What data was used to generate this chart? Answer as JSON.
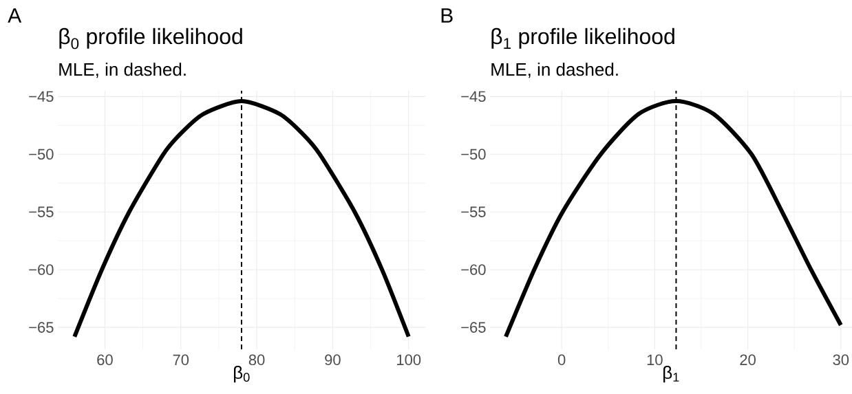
{
  "chart_data": [
    {
      "type": "line",
      "title": "β$_{0}$ profile likelihood",
      "subtitle": "MLE, in dashed.",
      "xlabel": "β$_{0}$",
      "annotations": [
        "A"
      ],
      "series": [
        {
          "color": "#000000",
          "x": [
            56,
            59.6,
            63.2,
            67.7,
            70,
            73,
            78,
            83,
            86,
            88.3,
            92.9,
            96.5,
            100
          ],
          "values": [
            -65.8,
            -60,
            -55,
            -50,
            -48.2,
            -46.5,
            -45.4,
            -46.5,
            -48.2,
            -50,
            -55,
            -60,
            -65.8
          ]
        }
      ],
      "ref_lines": [
        {
          "axis": "x",
          "value": 78,
          "color": "#000000",
          "line_style": "dashed"
        }
      ],
      "xlim": [
        53.8,
        102.2
      ],
      "ylim": [
        -66.9,
        -44.5
      ],
      "xticks": [
        60,
        70,
        80,
        90,
        100
      ],
      "yticks": [
        {
          "value": -65,
          "label": "−65"
        },
        {
          "value": -60,
          "label": "−60"
        },
        {
          "value": -55,
          "label": "−55"
        },
        {
          "value": -50,
          "label": "−50"
        },
        {
          "value": -45,
          "label": "−45"
        }
      ],
      "grid": true
    },
    {
      "type": "line",
      "title": "β$_{1}$ profile likelihood",
      "subtitle": "MLE, in dashed.",
      "xlabel": "β$_{1}$",
      "annotations": [
        "B"
      ],
      "series": [
        {
          "color": "#000000",
          "x": [
            -6,
            -2.95,
            0.1,
            4.2,
            8.3,
            12.3,
            16.3,
            20.4,
            23.7,
            26.8,
            30
          ],
          "values": [
            -65.8,
            -60,
            -55,
            -50,
            -46.5,
            -45.4,
            -46.5,
            -50,
            -55,
            -60,
            -64.8
          ]
        }
      ],
      "ref_lines": [
        {
          "axis": "x",
          "value": 12.3,
          "color": "#000000",
          "line_style": "dashed"
        }
      ],
      "xlim": [
        -7.7,
        31.2
      ],
      "ylim": [
        -66.9,
        -44.5
      ],
      "xticks": [
        0,
        10,
        20,
        30
      ],
      "yticks": [
        {
          "value": -65,
          "label": "−65"
        },
        {
          "value": -60,
          "label": "−60"
        },
        {
          "value": -55,
          "label": "−55"
        },
        {
          "value": -50,
          "label": "−50"
        },
        {
          "value": -45,
          "label": "−45"
        }
      ],
      "grid": true
    }
  ]
}
